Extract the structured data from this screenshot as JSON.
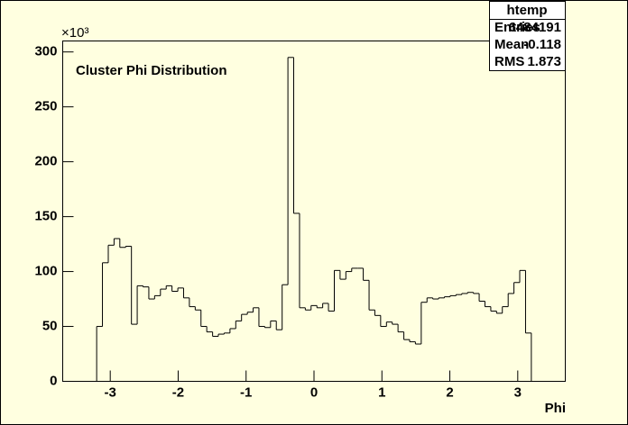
{
  "chart_data": {
    "type": "histogram",
    "annotation": "Cluster Phi Distribution",
    "x_label": "Phi",
    "y_exponent": "×10³",
    "color": "#000000",
    "xlim": [
      -3.7,
      3.7
    ],
    "ylim": [
      0,
      310
    ],
    "xticks": [
      -3,
      -2,
      -1,
      0,
      1,
      2,
      3
    ],
    "yticks": [
      0,
      50,
      100,
      150,
      200,
      250,
      300
    ],
    "bins": [
      -3.2,
      -3.115,
      -3.029,
      -2.944,
      -2.859,
      -2.773,
      -2.688,
      -2.603,
      -2.517,
      -2.432,
      -2.347,
      -2.261,
      -2.176,
      -2.091,
      -2.005,
      -1.92,
      -1.835,
      -1.749,
      -1.664,
      -1.579,
      -1.493,
      -1.408,
      -1.323,
      -1.237,
      -1.152,
      -1.067,
      -0.981,
      -0.896,
      -0.811,
      -0.725,
      -0.64,
      -0.555,
      -0.469,
      -0.384,
      -0.299,
      -0.213,
      -0.128,
      -0.043,
      0.043,
      0.128,
      0.213,
      0.299,
      0.384,
      0.469,
      0.555,
      0.64,
      0.725,
      0.811,
      0.896,
      0.981,
      1.067,
      1.152,
      1.237,
      1.323,
      1.408,
      1.493,
      1.579,
      1.664,
      1.749,
      1.835,
      1.92,
      2.005,
      2.091,
      2.176,
      2.261,
      2.347,
      2.432,
      2.517,
      2.603,
      2.688,
      2.773,
      2.859,
      2.944,
      3.029,
      3.115,
      3.2
    ],
    "values": [
      50,
      108,
      124,
      130,
      122,
      123,
      52,
      87,
      86,
      75,
      78,
      84,
      87,
      82,
      85,
      76,
      68,
      65,
      50,
      45,
      41,
      43,
      44,
      48,
      55,
      61,
      63,
      67,
      50,
      49,
      55,
      47,
      88,
      295,
      153,
      67,
      65,
      69,
      67,
      71,
      64,
      101,
      93,
      100,
      103,
      103,
      92,
      65,
      60,
      50,
      54,
      52,
      45,
      38,
      36,
      34,
      72,
      76,
      75,
      76,
      77,
      78,
      79,
      80,
      81,
      80,
      73,
      68,
      64,
      62,
      68,
      80,
      90,
      101,
      44
    ],
    "stats": {
      "title": "htemp",
      "rows": [
        [
          "Entries",
          6484191
        ],
        [
          "Mean",
          -0.118
        ],
        [
          "RMS",
          1.873
        ]
      ]
    }
  }
}
